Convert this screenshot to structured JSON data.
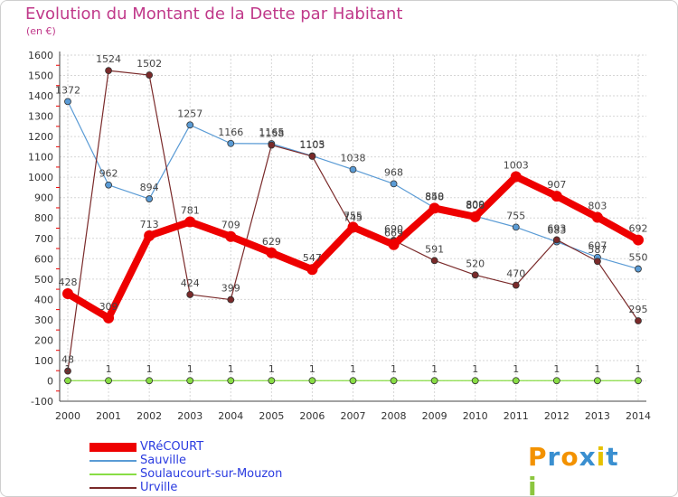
{
  "header": {
    "title": "Evolution du Montant de la Dette par Habitant",
    "unit": "(en €)"
  },
  "logo_text": "Proxiti",
  "chart_data": {
    "type": "line",
    "title": "Evolution du Montant de la Dette par Habitant",
    "subtitle": "(en €)",
    "xlabel": "",
    "ylabel": "",
    "x": [
      "2000",
      "2001",
      "2002",
      "2003",
      "2004",
      "2005",
      "2006",
      "2007",
      "2008",
      "2009",
      "2010",
      "2011",
      "2012",
      "2013",
      "2014"
    ],
    "ylim": [
      -100,
      1600
    ],
    "yticks": [
      "-100",
      "0",
      "100",
      "200",
      "300",
      "400",
      "500",
      "600",
      "700",
      "800",
      "900",
      "1000",
      "1100",
      "1200",
      "1300",
      "1400",
      "1500",
      "1600"
    ],
    "grid": true,
    "legend_position": "bottom-left",
    "series": [
      {
        "name": "VRéCOURT",
        "color": "#ee0000",
        "values": [
          428,
          309,
          713,
          781,
          709,
          629,
          547,
          755,
          669,
          848,
          806,
          1003,
          907,
          803,
          692
        ]
      },
      {
        "name": "Sauville",
        "color": "#5a9bd5",
        "values": [
          1372,
          962,
          894,
          1257,
          1166,
          1165,
          1105,
          1038,
          968,
          850,
          809,
          755,
          683,
          607,
          550
        ]
      },
      {
        "name": "Soulaucourt-sur-Mouzon",
        "color": "#88dd44",
        "values": [
          1,
          1,
          1,
          1,
          1,
          1,
          1,
          1,
          1,
          1,
          1,
          1,
          1,
          1,
          1
        ]
      },
      {
        "name": "Urville",
        "color": "#7a2a2a",
        "values": [
          48,
          1524,
          1502,
          424,
          399,
          1158,
          1103,
          745,
          690,
          591,
          520,
          470,
          693,
          587,
          295
        ]
      }
    ]
  }
}
